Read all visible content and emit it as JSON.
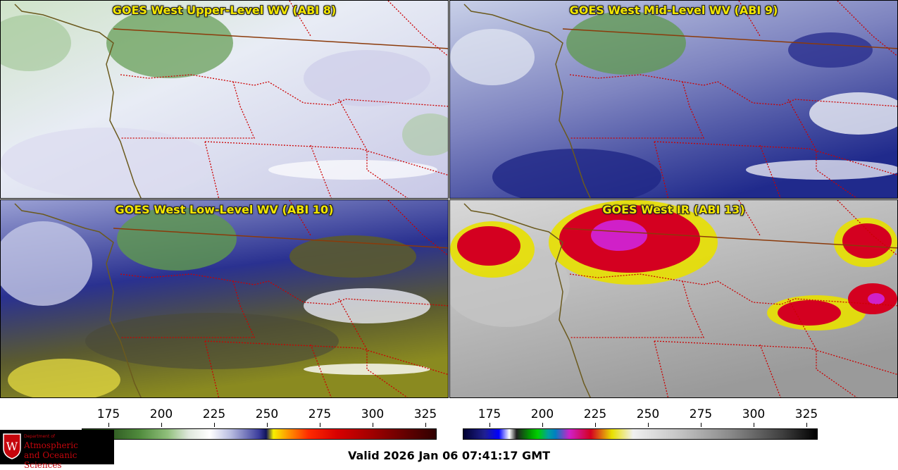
{
  "panels": [
    {
      "title": "GOES West Upper-Level WV (ABI 8)"
    },
    {
      "title": "GOES West Mid-Level WV (ABI 9)"
    },
    {
      "title": "GOES West Low-Level WV (ABI 10)"
    },
    {
      "title": "GOES West IR (ABI 13)"
    }
  ],
  "colorbars": [
    {
      "name": "wv",
      "ticks": [
        "175",
        "200",
        "225",
        "250",
        "275",
        "300",
        "325"
      ]
    },
    {
      "name": "ir",
      "ticks": [
        "175",
        "200",
        "225",
        "250",
        "275",
        "300",
        "325"
      ]
    }
  ],
  "logo": {
    "line1": "Department of",
    "line2": "Atmospheric",
    "line3": "and Oceanic Sciences"
  },
  "footer": {
    "valid": "Valid 2026 Jan 06 07:41:17 GMT"
  },
  "colors": {
    "title": "#f2e600",
    "border": "#cc0000",
    "coast": "#6b5a1e",
    "logo_red": "#c5050c"
  }
}
